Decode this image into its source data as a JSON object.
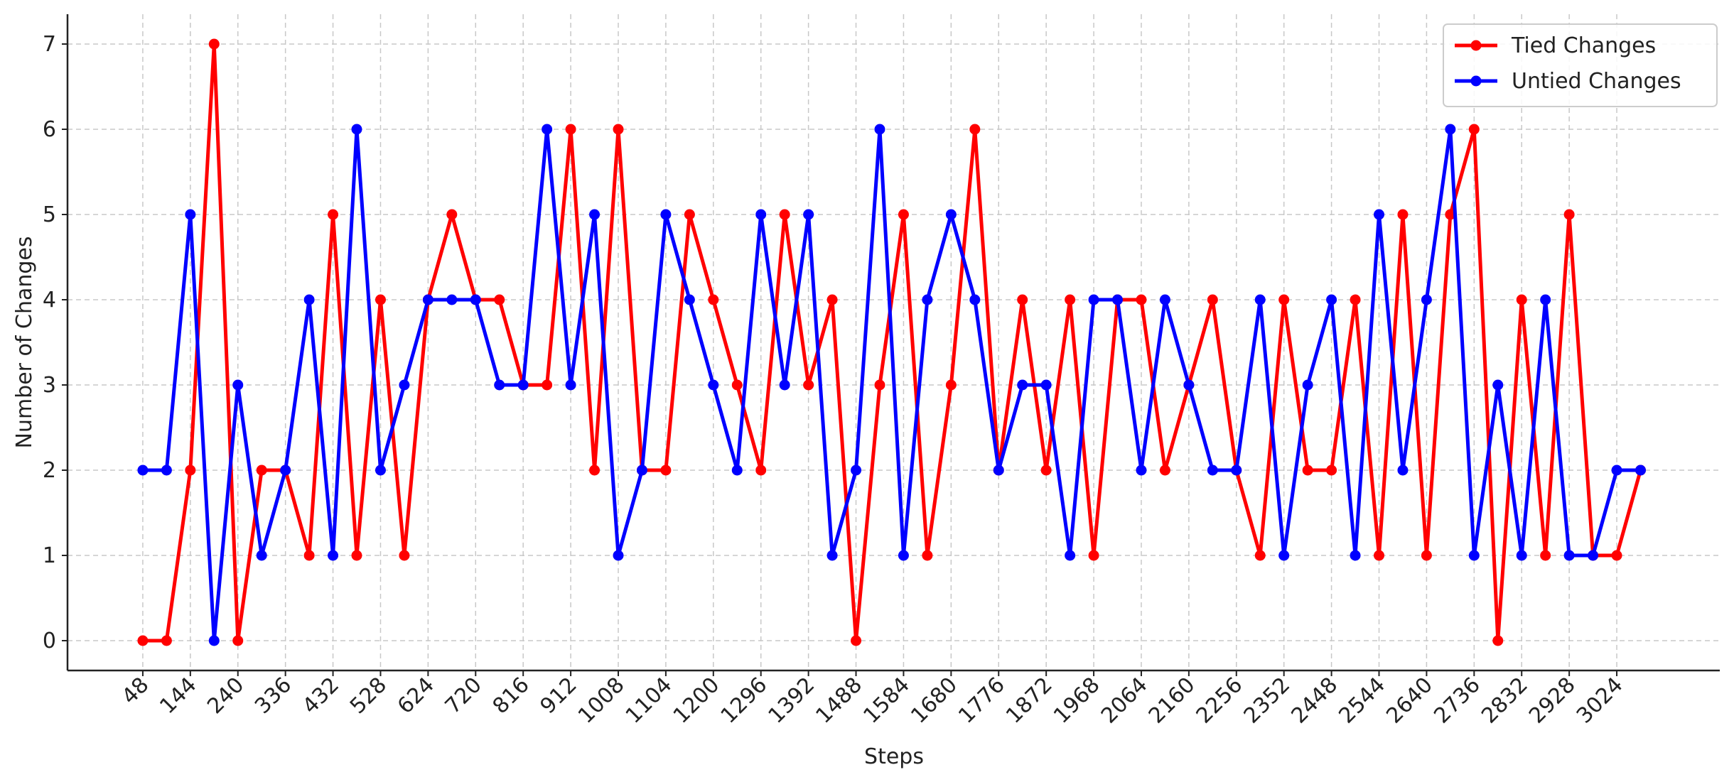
{
  "chart_data": {
    "type": "line",
    "xlabel": "Steps",
    "ylabel": "Number of Changes",
    "x": [
      48,
      96,
      144,
      192,
      240,
      288,
      336,
      384,
      432,
      480,
      528,
      576,
      624,
      672,
      720,
      768,
      816,
      864,
      912,
      960,
      1008,
      1056,
      1104,
      1152,
      1200,
      1248,
      1296,
      1344,
      1392,
      1440,
      1488,
      1536,
      1584,
      1632,
      1680,
      1728,
      1776,
      1824,
      1872,
      1920,
      1968,
      2016,
      2064,
      2112,
      2160,
      2208,
      2256,
      2304,
      2352,
      2400,
      2448,
      2496,
      2544,
      2592,
      2640,
      2688,
      2736,
      2784,
      2832,
      2880,
      2928,
      2976,
      3024,
      3072
    ],
    "series": [
      {
        "name": "Tied Changes",
        "color": "#ff0000",
        "values": [
          0,
          0,
          2,
          7,
          0,
          2,
          2,
          1,
          5,
          1,
          4,
          1,
          4,
          5,
          4,
          4,
          3,
          3,
          6,
          2,
          6,
          2,
          2,
          5,
          4,
          3,
          2,
          5,
          3,
          4,
          0,
          3,
          5,
          1,
          3,
          6,
          2,
          4,
          2,
          4,
          1,
          4,
          4,
          2,
          3,
          4,
          2,
          1,
          4,
          2,
          2,
          4,
          1,
          5,
          1,
          5,
          6,
          0,
          4,
          1,
          5,
          1,
          1,
          2
        ]
      },
      {
        "name": "Untied Changes",
        "color": "#0000ff",
        "values": [
          2,
          2,
          5,
          0,
          3,
          1,
          2,
          4,
          1,
          6,
          2,
          3,
          4,
          4,
          4,
          3,
          3,
          6,
          3,
          5,
          1,
          2,
          5,
          4,
          3,
          2,
          5,
          3,
          5,
          1,
          2,
          6,
          1,
          4,
          5,
          4,
          2,
          3,
          3,
          1,
          4,
          4,
          2,
          4,
          3,
          2,
          2,
          4,
          1,
          3,
          4,
          1,
          5,
          2,
          4,
          6,
          1,
          3,
          1,
          4,
          1,
          1,
          2,
          2
        ]
      }
    ],
    "xlim": [
      -104,
      3232
    ],
    "ylim": [
      -0.35,
      7.35
    ],
    "xticks": [
      48,
      144,
      240,
      336,
      432,
      528,
      624,
      720,
      816,
      912,
      1008,
      1104,
      1200,
      1296,
      1392,
      1488,
      1584,
      1680,
      1776,
      1872,
      1968,
      2064,
      2160,
      2256,
      2352,
      2448,
      2544,
      2640,
      2736,
      2832,
      2928,
      3024
    ],
    "yticks": [
      0,
      1,
      2,
      3,
      4,
      5,
      6,
      7
    ],
    "grid": true,
    "legend": "upper right"
  }
}
